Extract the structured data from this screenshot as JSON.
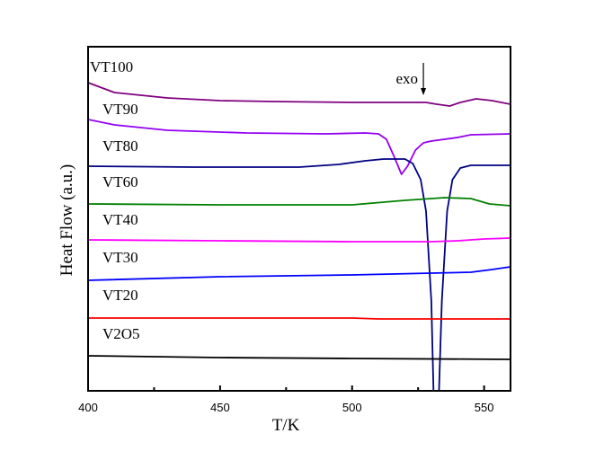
{
  "chart_data": {
    "type": "line",
    "title": "",
    "xlabel": "T/K",
    "ylabel": "Heat Flow (a.u.)",
    "xlim": [
      400,
      560
    ],
    "ylim": [
      0,
      38.3
    ],
    "xticks": [
      400,
      450,
      500,
      550
    ],
    "xminor_ticks": [
      425,
      475,
      525
    ],
    "grid": false,
    "legend": "inline labels at left of each curve",
    "annotation": {
      "text": "exo",
      "arrow": "down",
      "x": 527
    },
    "series": [
      {
        "name": "VT100",
        "color": "#800080",
        "label_y": 35.5,
        "points": [
          [
            400,
            34.3
          ],
          [
            410,
            33.2
          ],
          [
            430,
            32.6
          ],
          [
            450,
            32.3
          ],
          [
            470,
            32.2
          ],
          [
            500,
            32.1
          ],
          [
            528,
            32.1
          ],
          [
            532,
            31.9
          ],
          [
            537,
            31.7
          ],
          [
            541,
            32.1
          ],
          [
            547,
            32.5
          ],
          [
            553,
            32.3
          ],
          [
            560,
            31.9
          ]
        ]
      },
      {
        "name": "VT90",
        "color": "#9400F5",
        "label_y": 30.8,
        "points": [
          [
            400,
            30.2
          ],
          [
            410,
            29.6
          ],
          [
            430,
            29.0
          ],
          [
            460,
            28.7
          ],
          [
            490,
            28.6
          ],
          [
            505,
            28.7
          ],
          [
            510,
            28.6
          ],
          [
            513,
            28.0
          ],
          [
            516,
            26.0
          ],
          [
            518.7,
            24.1
          ],
          [
            521,
            25.0
          ],
          [
            524,
            26.8
          ],
          [
            527,
            27.6
          ],
          [
            530,
            27.8
          ],
          [
            540,
            28.2
          ],
          [
            545,
            28.5
          ],
          [
            560,
            28.6
          ]
        ]
      },
      {
        "name": "VT80",
        "color": "#000080",
        "label_y": 26.7,
        "points": [
          [
            400,
            25.0
          ],
          [
            440,
            24.9
          ],
          [
            480,
            24.9
          ],
          [
            495,
            25.2
          ],
          [
            505,
            25.6
          ],
          [
            512,
            25.8
          ],
          [
            520,
            25.8
          ],
          [
            523,
            25.3
          ],
          [
            526,
            23.5
          ],
          [
            528,
            20
          ],
          [
            530,
            10
          ],
          [
            531,
            -2
          ],
          [
            532.7,
            -2
          ],
          [
            534,
            10
          ],
          [
            536,
            20
          ],
          [
            538,
            23.5
          ],
          [
            541,
            24.8
          ],
          [
            545,
            25.1
          ],
          [
            560,
            25.1
          ]
        ]
      },
      {
        "name": "VT60",
        "color": "#008000",
        "label_y": 22.7,
        "points": [
          [
            400,
            20.8
          ],
          [
            450,
            20.7
          ],
          [
            500,
            20.7
          ],
          [
            520,
            21.2
          ],
          [
            535,
            21.5
          ],
          [
            545,
            21.4
          ],
          [
            552,
            20.8
          ],
          [
            560,
            20.6
          ]
        ]
      },
      {
        "name": "VT40",
        "color": "#FF00FF",
        "label_y": 18.5,
        "points": [
          [
            400,
            16.8
          ],
          [
            450,
            16.7
          ],
          [
            500,
            16.6
          ],
          [
            530,
            16.6
          ],
          [
            540,
            16.7
          ],
          [
            550,
            16.9
          ],
          [
            560,
            17.0
          ]
        ]
      },
      {
        "name": "VT30",
        "color": "#0000FF",
        "label_y": 14.3,
        "points": [
          [
            400,
            12.3
          ],
          [
            450,
            12.7
          ],
          [
            500,
            12.9
          ],
          [
            530,
            13.1
          ],
          [
            545,
            13.2
          ],
          [
            553,
            13.5
          ],
          [
            560,
            13.8
          ]
        ]
      },
      {
        "name": "VT20",
        "color": "#FF0000",
        "label_y": 10.1,
        "points": [
          [
            400,
            8.1
          ],
          [
            500,
            8.1
          ],
          [
            510,
            8.0
          ],
          [
            560,
            8.0
          ]
        ]
      },
      {
        "name": "V2O5",
        "color": "#000000",
        "label_y": 5.8,
        "points": [
          [
            400,
            3.9
          ],
          [
            450,
            3.7
          ],
          [
            500,
            3.6
          ],
          [
            560,
            3.5
          ]
        ]
      }
    ]
  }
}
